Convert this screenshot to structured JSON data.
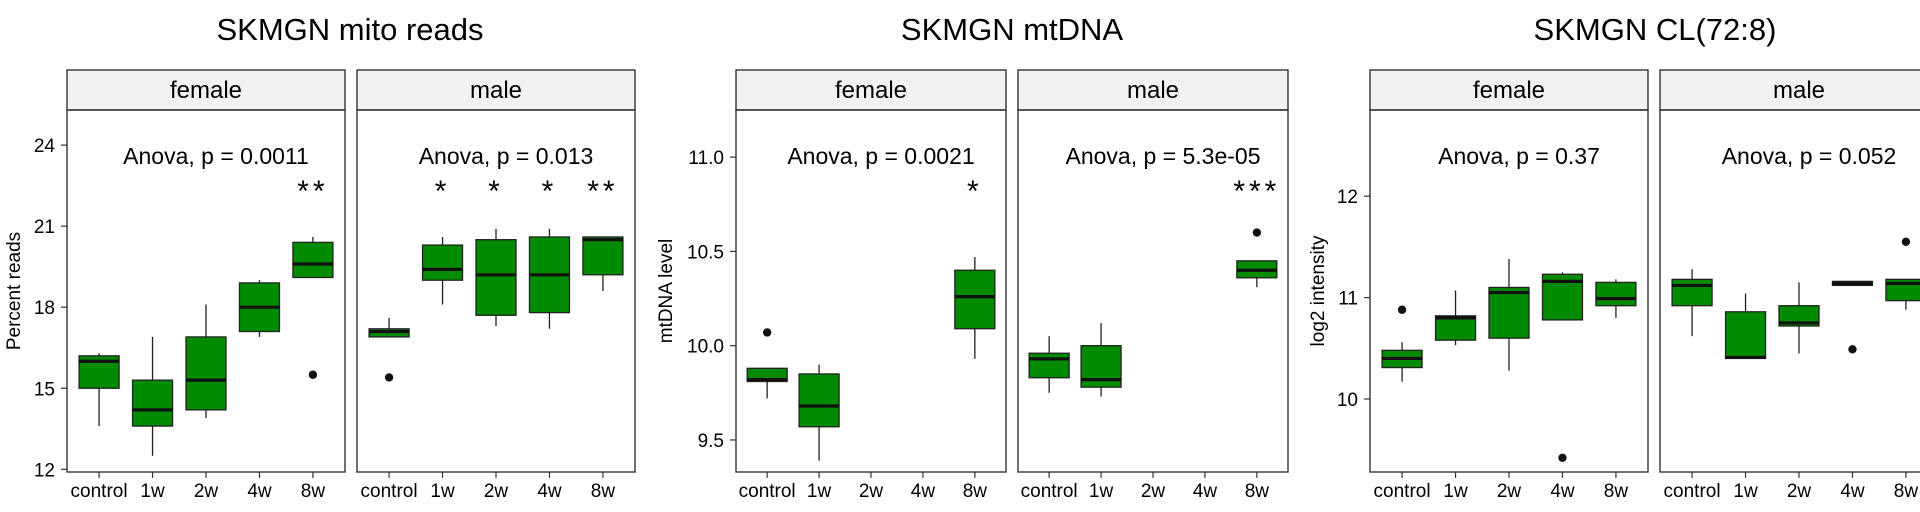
{
  "chart_data": [
    {
      "type": "box",
      "title": "SKMGN mito reads",
      "ylabel": "Percent reads",
      "xlabel": "",
      "ylim": [
        11.9,
        25.3
      ],
      "yticks": [
        12,
        15,
        18,
        21,
        24
      ],
      "categories": [
        "control",
        "1w",
        "2w",
        "4w",
        "8w"
      ],
      "fill_color": "#008B00",
      "strip_color": "#F2F2F2",
      "panels": [
        {
          "label": "female",
          "annotation": "Anova, p = 0.0011",
          "boxes": [
            {
              "category": "control",
              "min": 13.6,
              "q1": 15.0,
              "median": 16.0,
              "q3": 16.2,
              "max": 16.3,
              "outliers": [],
              "sig": ""
            },
            {
              "category": "1w",
              "min": 12.5,
              "q1": 13.6,
              "median": 14.2,
              "q3": 15.3,
              "max": 16.9,
              "outliers": [],
              "sig": ""
            },
            {
              "category": "2w",
              "min": 13.9,
              "q1": 14.2,
              "median": 15.3,
              "q3": 16.9,
              "max": 18.1,
              "outliers": [],
              "sig": ""
            },
            {
              "category": "4w",
              "min": 16.9,
              "q1": 17.1,
              "median": 18.0,
              "q3": 18.9,
              "max": 19.0,
              "outliers": [],
              "sig": ""
            },
            {
              "category": "8w",
              "min": 19.1,
              "q1": 19.1,
              "median": 19.6,
              "q3": 20.4,
              "max": 20.6,
              "outliers": [
                15.5
              ],
              "sig": "**"
            }
          ]
        },
        {
          "label": "male",
          "annotation": "Anova, p = 0.013",
          "boxes": [
            {
              "category": "control",
              "min": 16.9,
              "q1": 16.9,
              "median": 17.1,
              "q3": 17.2,
              "max": 17.6,
              "outliers": [
                15.4
              ],
              "sig": ""
            },
            {
              "category": "1w",
              "min": 18.1,
              "q1": 19.0,
              "median": 19.4,
              "q3": 20.3,
              "max": 20.6,
              "outliers": [],
              "sig": "*"
            },
            {
              "category": "2w",
              "min": 17.3,
              "q1": 17.7,
              "median": 19.2,
              "q3": 20.5,
              "max": 20.9,
              "outliers": [],
              "sig": "*"
            },
            {
              "category": "4w",
              "min": 17.2,
              "q1": 17.8,
              "median": 19.2,
              "q3": 20.6,
              "max": 20.9,
              "outliers": [],
              "sig": "*"
            },
            {
              "category": "8w",
              "min": 18.6,
              "q1": 19.2,
              "median": 20.5,
              "q3": 20.6,
              "max": 20.6,
              "outliers": [],
              "sig": "**"
            }
          ]
        }
      ]
    },
    {
      "type": "box",
      "title": "SKMGN mtDNA",
      "ylabel": "mtDNA level",
      "xlabel": "",
      "ylim": [
        9.33,
        11.25
      ],
      "yticks": [
        9.5,
        10.0,
        10.5,
        11.0
      ],
      "ytick_labels": [
        "9.5",
        "10.0",
        "10.5",
        "11.0"
      ],
      "categories": [
        "control",
        "1w",
        "2w",
        "4w",
        "8w"
      ],
      "fill_color": "#008B00",
      "strip_color": "#F2F2F2",
      "panels": [
        {
          "label": "female",
          "annotation": "Anova, p = 0.0021",
          "boxes": [
            {
              "category": "control",
              "min": 9.72,
              "q1": 9.81,
              "median": 9.82,
              "q3": 9.88,
              "max": 9.88,
              "outliers": [
                10.07
              ],
              "sig": ""
            },
            {
              "category": "1w",
              "min": 9.39,
              "q1": 9.57,
              "median": 9.68,
              "q3": 9.85,
              "max": 9.9,
              "outliers": [],
              "sig": ""
            },
            {
              "category": "8w",
              "min": 9.93,
              "q1": 10.09,
              "median": 10.26,
              "q3": 10.4,
              "max": 10.47,
              "outliers": [],
              "sig": "*"
            }
          ]
        },
        {
          "label": "male",
          "annotation": "Anova, p = 5.3e-05",
          "boxes": [
            {
              "category": "control",
              "min": 9.75,
              "q1": 9.83,
              "median": 9.93,
              "q3": 9.96,
              "max": 10.05,
              "outliers": [],
              "sig": ""
            },
            {
              "category": "1w",
              "min": 9.73,
              "q1": 9.78,
              "median": 9.82,
              "q3": 10.0,
              "max": 10.12,
              "outliers": [],
              "sig": ""
            },
            {
              "category": "8w",
              "min": 10.31,
              "q1": 10.36,
              "median": 10.4,
              "q3": 10.45,
              "max": 10.45,
              "outliers": [
                10.6
              ],
              "sig": "***"
            }
          ]
        }
      ]
    },
    {
      "type": "box",
      "title": "SKMGN CL(72:8)",
      "ylabel": "log2 intensity",
      "xlabel": "",
      "ylim": [
        9.28,
        12.85
      ],
      "yticks": [
        10,
        11,
        12
      ],
      "categories": [
        "control",
        "1w",
        "2w",
        "4w",
        "8w"
      ],
      "fill_color": "#008B00",
      "strip_color": "#F2F2F2",
      "panels": [
        {
          "label": "female",
          "annotation": "Anova, p = 0.37",
          "boxes": [
            {
              "category": "control",
              "min": 10.17,
              "q1": 10.31,
              "median": 10.4,
              "q3": 10.48,
              "max": 10.56,
              "outliers": [
                10.88
              ],
              "sig": ""
            },
            {
              "category": "1w",
              "min": 10.53,
              "q1": 10.58,
              "median": 10.8,
              "q3": 10.82,
              "max": 11.07,
              "outliers": [],
              "sig": ""
            },
            {
              "category": "2w",
              "min": 10.28,
              "q1": 10.6,
              "median": 11.05,
              "q3": 11.1,
              "max": 11.38,
              "outliers": [],
              "sig": ""
            },
            {
              "category": "4w",
              "min": 10.78,
              "q1": 10.78,
              "median": 11.16,
              "q3": 11.23,
              "max": 11.25,
              "outliers": [
                9.42
              ],
              "sig": ""
            },
            {
              "category": "8w",
              "min": 10.8,
              "q1": 10.92,
              "median": 10.99,
              "q3": 11.15,
              "max": 11.18,
              "outliers": [],
              "sig": ""
            }
          ]
        },
        {
          "label": "male",
          "annotation": "Anova, p = 0.052",
          "boxes": [
            {
              "category": "control",
              "min": 10.62,
              "q1": 10.92,
              "median": 11.12,
              "q3": 11.18,
              "max": 11.28,
              "outliers": [],
              "sig": ""
            },
            {
              "category": "1w",
              "min": 10.4,
              "q1": 10.4,
              "median": 10.41,
              "q3": 10.86,
              "max": 11.04,
              "outliers": [],
              "sig": ""
            },
            {
              "category": "2w",
              "min": 10.45,
              "q1": 10.72,
              "median": 10.75,
              "q3": 10.92,
              "max": 11.15,
              "outliers": [],
              "sig": ""
            },
            {
              "category": "4w",
              "min": 11.12,
              "q1": 11.12,
              "median": 11.14,
              "q3": 11.16,
              "max": 11.16,
              "outliers": [
                10.49
              ],
              "sig": ""
            },
            {
              "category": "8w",
              "min": 10.88,
              "q1": 10.97,
              "median": 11.14,
              "q3": 11.18,
              "max": 11.18,
              "outliers": [
                11.55
              ],
              "sig": ""
            }
          ]
        }
      ]
    }
  ]
}
